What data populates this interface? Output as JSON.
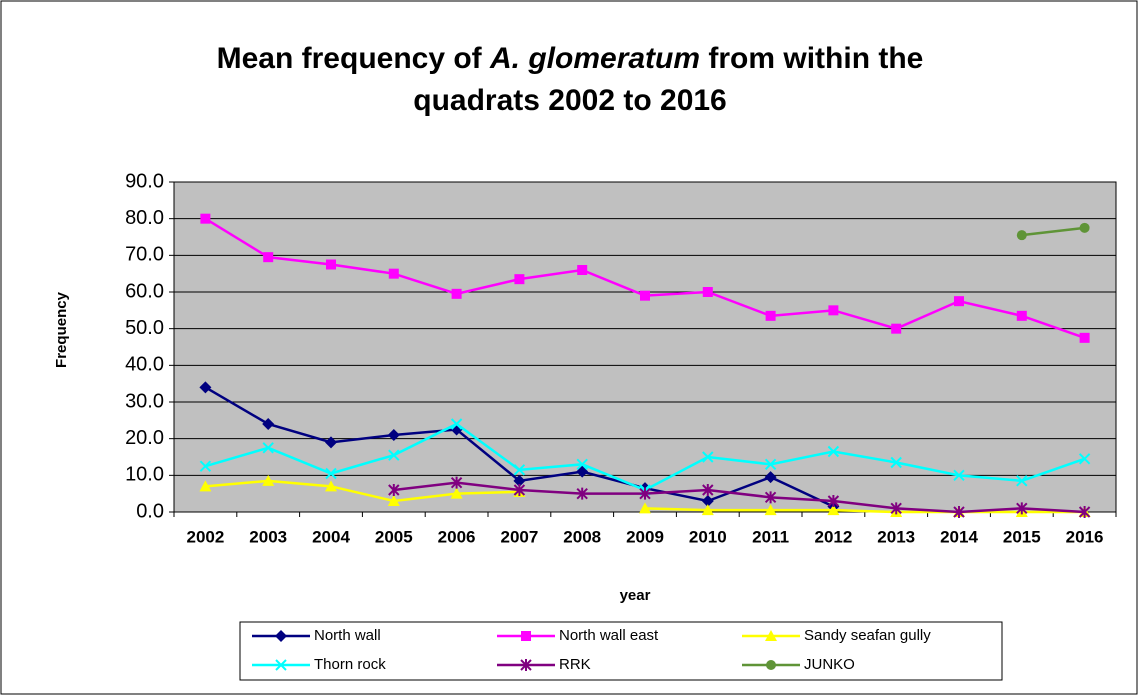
{
  "chart_data": {
    "type": "line",
    "title": [
      [
        {
          "text": "Mean frequency of "
        },
        {
          "text": "A. glomeratum",
          "italic": true
        },
        {
          "text": " from within the"
        }
      ],
      [
        {
          "text": "quadrats 2002 to 2016"
        }
      ]
    ],
    "xlabel": "year",
    "ylabel": "Frequency",
    "categories": [
      "2002",
      "2003",
      "2004",
      "2005",
      "2006",
      "2007",
      "2008",
      "2009",
      "2010",
      "2011",
      "2012",
      "2013",
      "2014",
      "2015",
      "2016"
    ],
    "series": [
      {
        "name": "North wall",
        "color": "#000080",
        "marker": "diamond",
        "values": [
          34.0,
          24.0,
          19.0,
          21.0,
          22.5,
          8.5,
          11.0,
          6.5,
          3.0,
          9.5,
          1.5,
          null,
          null,
          null,
          null
        ]
      },
      {
        "name": "North wall east",
        "color": "#ff00ff",
        "marker": "square",
        "values": [
          80.0,
          69.5,
          67.5,
          65.0,
          59.5,
          63.5,
          66.0,
          59.0,
          60.0,
          53.5,
          55.0,
          50.0,
          57.5,
          53.5,
          47.5
        ]
      },
      {
        "name": "Sandy seafan gully",
        "color": "#ffff00",
        "marker": "triangle",
        "values": [
          7.0,
          8.5,
          7.0,
          3.0,
          5.0,
          5.5,
          null,
          1.0,
          0.5,
          0.5,
          0.5,
          0,
          0,
          0,
          0
        ]
      },
      {
        "name": "Thorn rock",
        "color": "#00ffff",
        "marker": "x",
        "values": [
          12.5,
          17.5,
          10.5,
          15.5,
          24.0,
          11.5,
          13.0,
          6.0,
          15.0,
          13.0,
          16.5,
          13.5,
          10.0,
          8.5,
          14.5
        ]
      },
      {
        "name": "RRK",
        "color": "#800080",
        "marker": "star",
        "values": [
          null,
          null,
          null,
          6.0,
          8.0,
          6.0,
          5.0,
          5.0,
          6.0,
          4.0,
          3.0,
          1.0,
          0,
          1.0,
          0
        ]
      },
      {
        "name": "JUNKO",
        "color": "#5f9437",
        "marker": "circle",
        "values": [
          null,
          null,
          null,
          null,
          null,
          null,
          null,
          null,
          null,
          null,
          null,
          null,
          null,
          75.5,
          77.5
        ]
      }
    ],
    "ylim": [
      0,
      90
    ],
    "yticks": [
      {
        "value": 0,
        "label": "0.0"
      },
      {
        "value": 10,
        "label": "10.0"
      },
      {
        "value": 20,
        "label": "20.0"
      },
      {
        "value": 30,
        "label": "30.0"
      },
      {
        "value": 40,
        "label": "40.0"
      },
      {
        "value": 50,
        "label": "50.0"
      },
      {
        "value": 60,
        "label": "60.0"
      },
      {
        "value": 70,
        "label": "70.0"
      },
      {
        "value": 80,
        "label": "80.0"
      },
      {
        "value": 90,
        "label": "90.0"
      }
    ],
    "grid": true,
    "plot_background": "#c0c0c0",
    "legend": "bottom"
  }
}
